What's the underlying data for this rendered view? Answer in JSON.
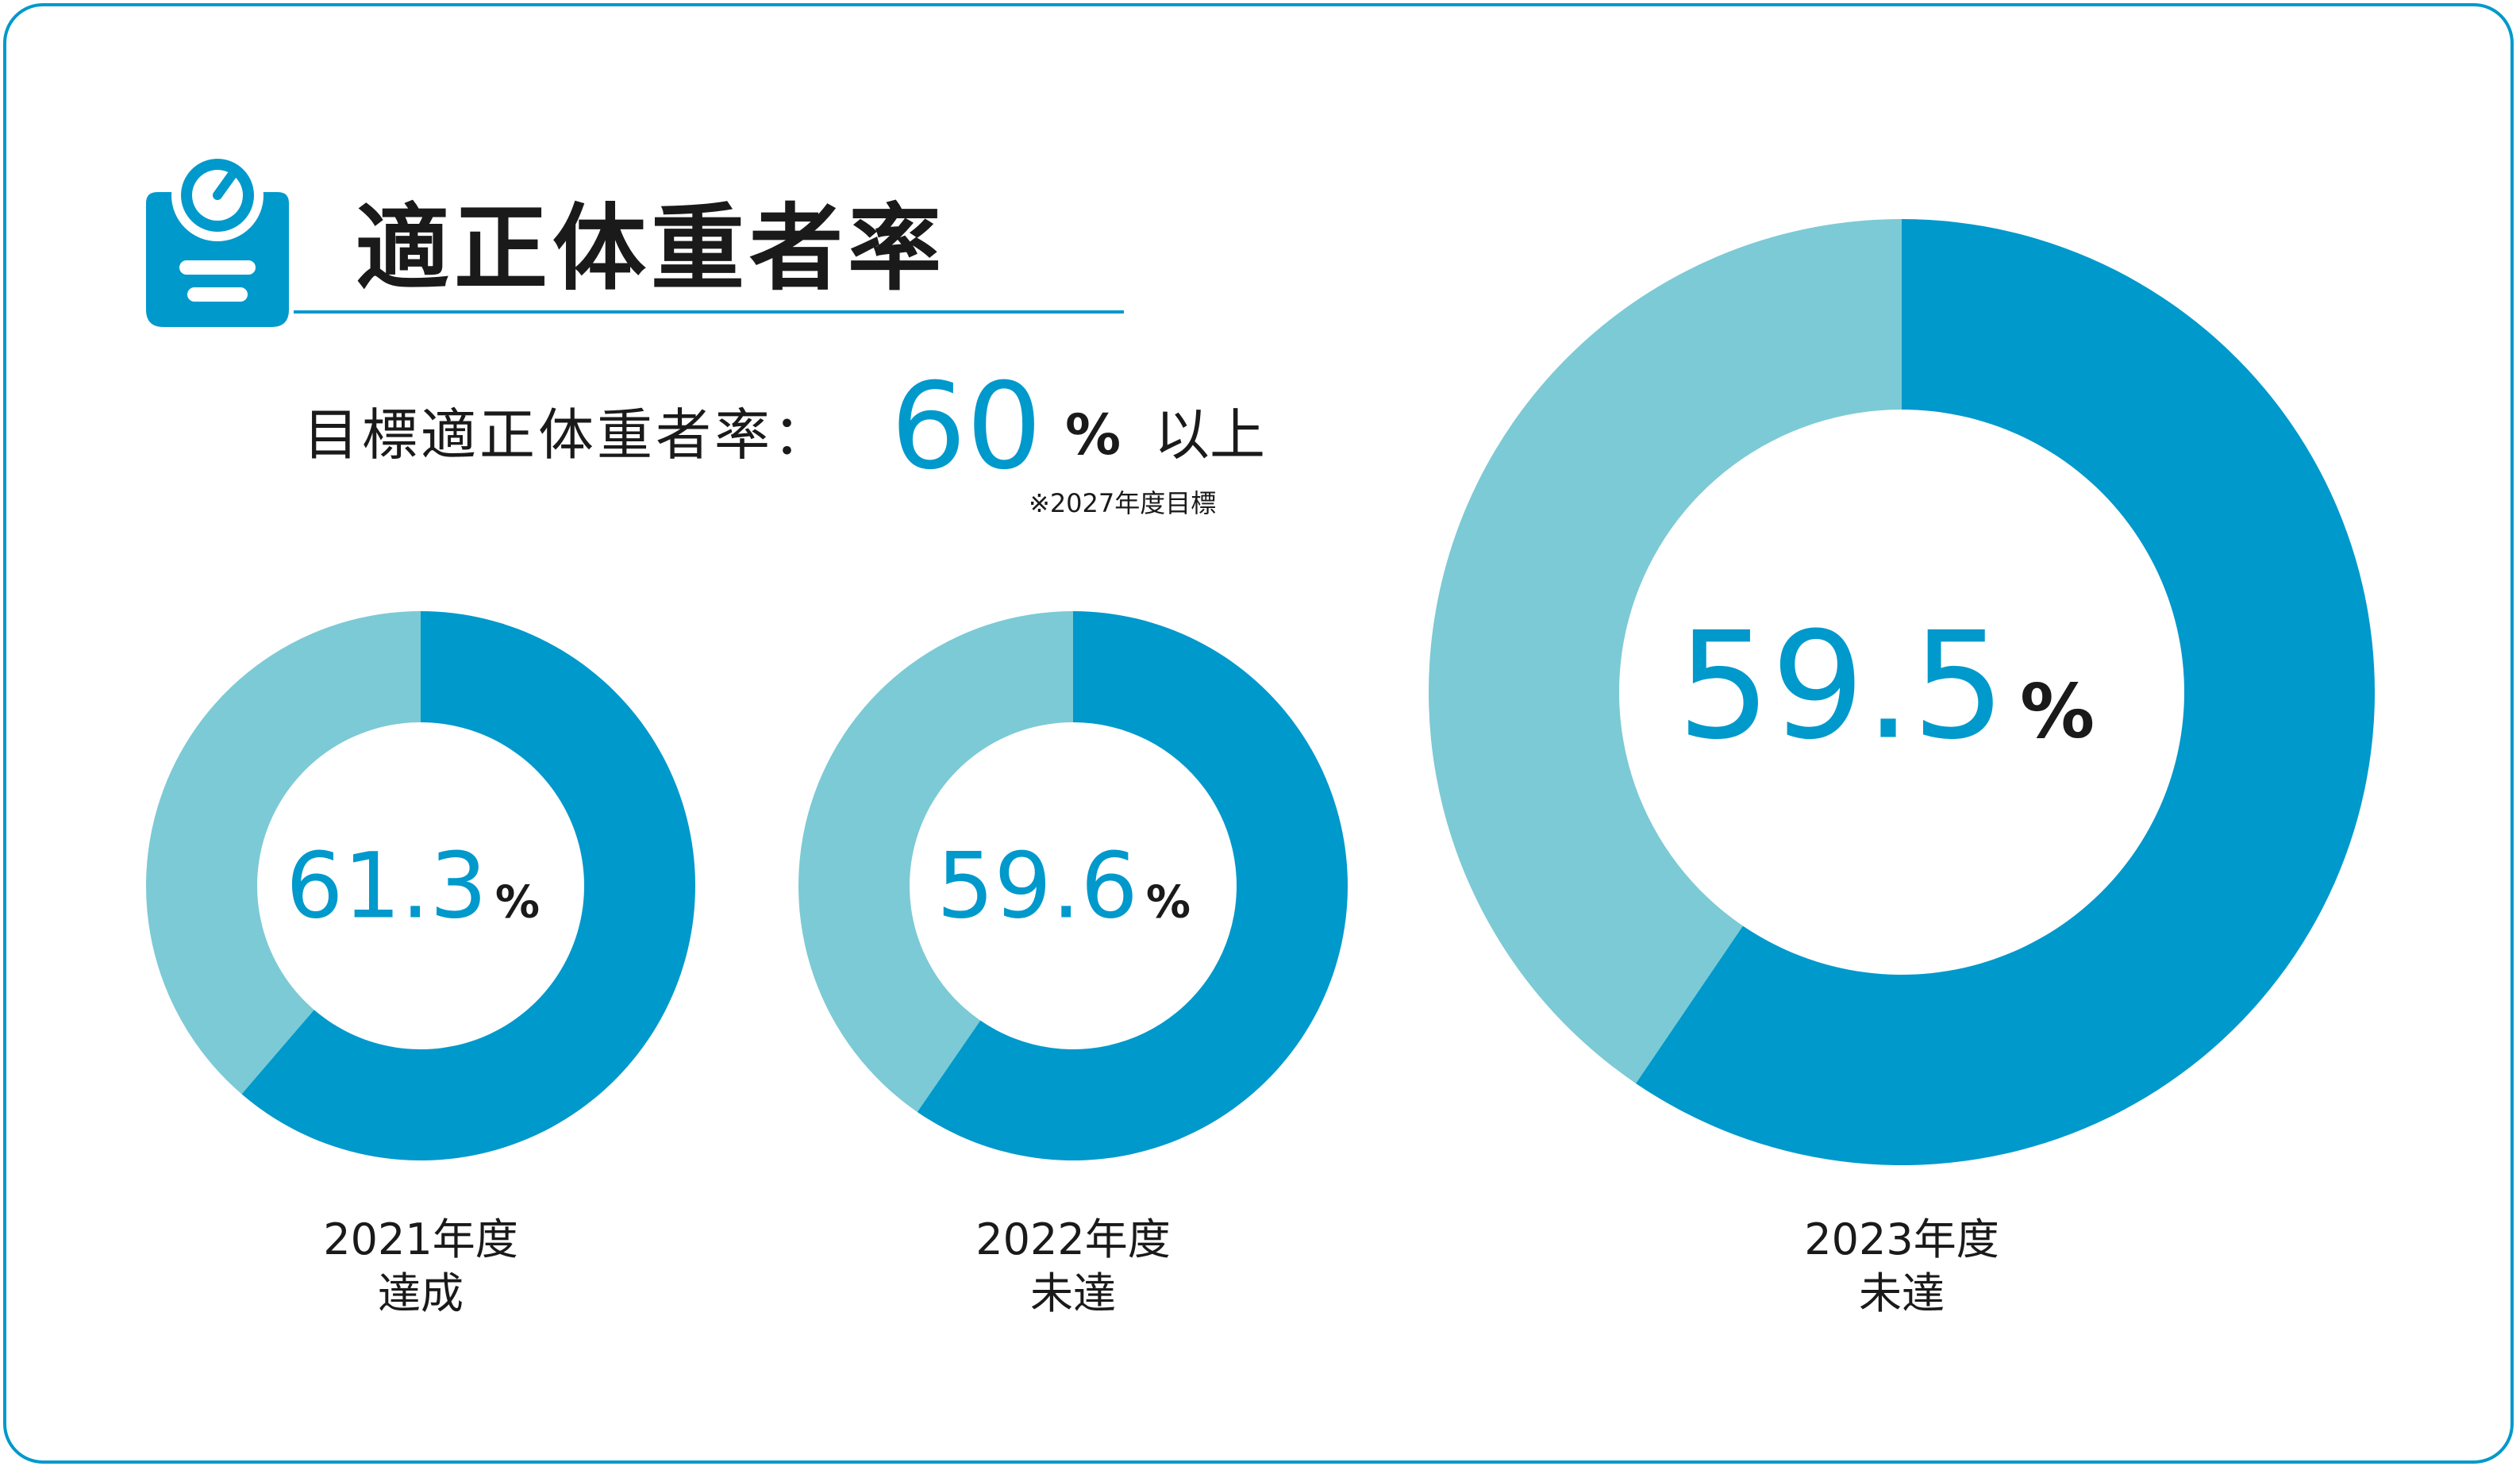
{
  "title": "適正体重者率",
  "target": {
    "label": "目標適正体重者率：",
    "value": "60",
    "unit": "%",
    "suffix": "以上",
    "note": "※2027年度目標"
  },
  "colors": {
    "primary": "#0099cc",
    "secondary": "#7ccad5",
    "frame": "#0099cc",
    "text": "#1a1a1a"
  },
  "icon": "scale-icon",
  "chart_data": [
    {
      "type": "pie",
      "year": "2021年度",
      "status": "達成",
      "display": "61.3",
      "unit": "%",
      "values": [
        61.3,
        38.7
      ]
    },
    {
      "type": "pie",
      "year": "2022年度",
      "status": "未達",
      "display": "59.6",
      "unit": "%",
      "values": [
        59.6,
        40.4
      ]
    },
    {
      "type": "pie",
      "year": "2023年度",
      "status": "未達",
      "display": "59.5",
      "unit": "%",
      "values": [
        59.5,
        40.5
      ]
    }
  ]
}
